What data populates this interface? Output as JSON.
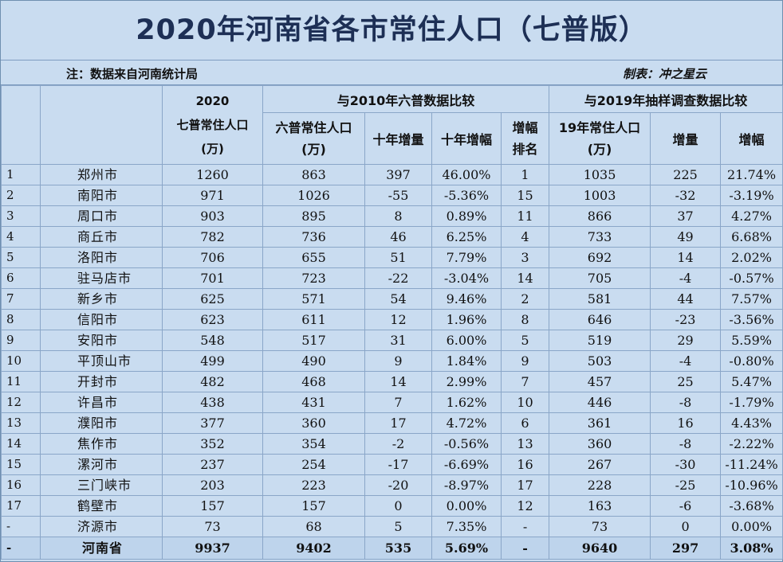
{
  "title": "2020年河南省各市常住人口（七普版）",
  "note_left": "注：数据来自河南统计局",
  "note_right": "制表：冲之星云",
  "headers": {
    "pop2020_line1": "2020",
    "pop2020_line2": "七普常住人口",
    "pop2020_line3": "(万)",
    "group_2010": "与2010年六普数据比较",
    "group_2019": "与2019年抽样调查数据比较",
    "pop2010_line1": "六普常住人口",
    "pop2010_line2": "(万)",
    "decade_increase": "十年增量",
    "decade_growth": "十年增幅",
    "rank_line1": "增幅",
    "rank_line2": "排名",
    "pop2019_line1": "19年常住人口",
    "pop2019_line2": "(万)",
    "increase_2019": "增量",
    "growth_2019": "增幅"
  },
  "rows": [
    {
      "idx": "1",
      "city": "郑州市",
      "pop2020": "1260",
      "pop2010": "863",
      "inc10": "397",
      "gr10": "46.00%",
      "rank": "1",
      "pop2019": "1035",
      "inc19": "225",
      "gr19": "21.74%"
    },
    {
      "idx": "2",
      "city": "南阳市",
      "pop2020": "971",
      "pop2010": "1026",
      "inc10": "-55",
      "gr10": "-5.36%",
      "rank": "15",
      "pop2019": "1003",
      "inc19": "-32",
      "gr19": "-3.19%"
    },
    {
      "idx": "3",
      "city": "周口市",
      "pop2020": "903",
      "pop2010": "895",
      "inc10": "8",
      "gr10": "0.89%",
      "rank": "11",
      "pop2019": "866",
      "inc19": "37",
      "gr19": "4.27%"
    },
    {
      "idx": "4",
      "city": "商丘市",
      "pop2020": "782",
      "pop2010": "736",
      "inc10": "46",
      "gr10": "6.25%",
      "rank": "4",
      "pop2019": "733",
      "inc19": "49",
      "gr19": "6.68%"
    },
    {
      "idx": "5",
      "city": "洛阳市",
      "pop2020": "706",
      "pop2010": "655",
      "inc10": "51",
      "gr10": "7.79%",
      "rank": "3",
      "pop2019": "692",
      "inc19": "14",
      "gr19": "2.02%"
    },
    {
      "idx": "6",
      "city": "驻马店市",
      "pop2020": "701",
      "pop2010": "723",
      "inc10": "-22",
      "gr10": "-3.04%",
      "rank": "14",
      "pop2019": "705",
      "inc19": "-4",
      "gr19": "-0.57%"
    },
    {
      "idx": "7",
      "city": "新乡市",
      "pop2020": "625",
      "pop2010": "571",
      "inc10": "54",
      "gr10": "9.46%",
      "rank": "2",
      "pop2019": "581",
      "inc19": "44",
      "gr19": "7.57%"
    },
    {
      "idx": "8",
      "city": "信阳市",
      "pop2020": "623",
      "pop2010": "611",
      "inc10": "12",
      "gr10": "1.96%",
      "rank": "8",
      "pop2019": "646",
      "inc19": "-23",
      "gr19": "-3.56%"
    },
    {
      "idx": "9",
      "city": "安阳市",
      "pop2020": "548",
      "pop2010": "517",
      "inc10": "31",
      "gr10": "6.00%",
      "rank": "5",
      "pop2019": "519",
      "inc19": "29",
      "gr19": "5.59%"
    },
    {
      "idx": "10",
      "city": "平顶山市",
      "pop2020": "499",
      "pop2010": "490",
      "inc10": "9",
      "gr10": "1.84%",
      "rank": "9",
      "pop2019": "503",
      "inc19": "-4",
      "gr19": "-0.80%"
    },
    {
      "idx": "11",
      "city": "开封市",
      "pop2020": "482",
      "pop2010": "468",
      "inc10": "14",
      "gr10": "2.99%",
      "rank": "7",
      "pop2019": "457",
      "inc19": "25",
      "gr19": "5.47%"
    },
    {
      "idx": "12",
      "city": "许昌市",
      "pop2020": "438",
      "pop2010": "431",
      "inc10": "7",
      "gr10": "1.62%",
      "rank": "10",
      "pop2019": "446",
      "inc19": "-8",
      "gr19": "-1.79%"
    },
    {
      "idx": "13",
      "city": "濮阳市",
      "pop2020": "377",
      "pop2010": "360",
      "inc10": "17",
      "gr10": "4.72%",
      "rank": "6",
      "pop2019": "361",
      "inc19": "16",
      "gr19": "4.43%"
    },
    {
      "idx": "14",
      "city": "焦作市",
      "pop2020": "352",
      "pop2010": "354",
      "inc10": "-2",
      "gr10": "-0.56%",
      "rank": "13",
      "pop2019": "360",
      "inc19": "-8",
      "gr19": "-2.22%"
    },
    {
      "idx": "15",
      "city": "漯河市",
      "pop2020": "237",
      "pop2010": "254",
      "inc10": "-17",
      "gr10": "-6.69%",
      "rank": "16",
      "pop2019": "267",
      "inc19": "-30",
      "gr19": "-11.24%"
    },
    {
      "idx": "16",
      "city": "三门峡市",
      "pop2020": "203",
      "pop2010": "223",
      "inc10": "-20",
      "gr10": "-8.97%",
      "rank": "17",
      "pop2019": "228",
      "inc19": "-25",
      "gr19": "-10.96%"
    },
    {
      "idx": "17",
      "city": "鹤壁市",
      "pop2020": "157",
      "pop2010": "157",
      "inc10": "0",
      "gr10": "0.00%",
      "rank": "12",
      "pop2019": "163",
      "inc19": "-6",
      "gr19": "-3.68%"
    },
    {
      "idx": "-",
      "city": "济源市",
      "pop2020": "73",
      "pop2010": "68",
      "inc10": "5",
      "gr10": "7.35%",
      "rank": "-",
      "pop2019": "73",
      "inc19": "0",
      "gr19": "0.00%"
    }
  ],
  "total": {
    "idx": "-",
    "city": "河南省",
    "pop2020": "9937",
    "pop2010": "9402",
    "inc10": "535",
    "gr10": "5.69%",
    "rank": "-",
    "pop2019": "9640",
    "inc19": "297",
    "gr19": "3.08%"
  }
}
